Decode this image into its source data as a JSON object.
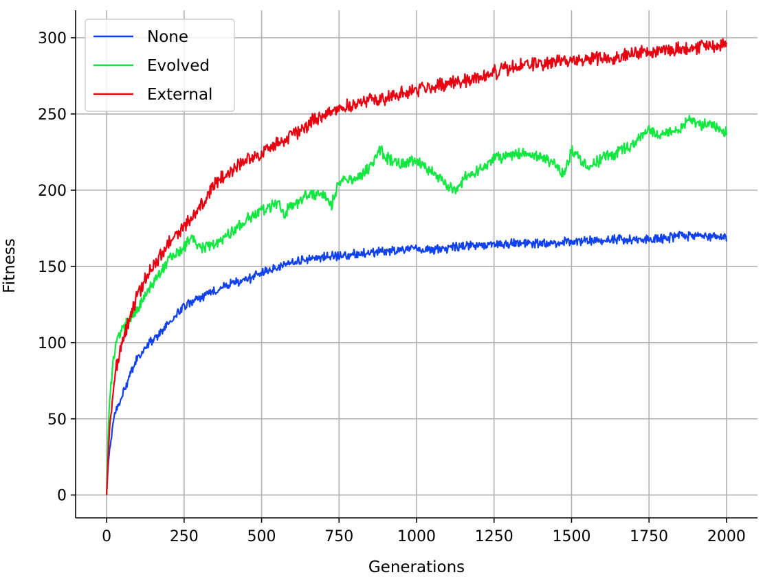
{
  "chart_data": {
    "type": "line",
    "xlabel": "Generations",
    "ylabel": "Fitness",
    "xlim": [
      -100,
      2100
    ],
    "ylim": [
      -15,
      318
    ],
    "xticks": [
      0,
      250,
      500,
      750,
      1000,
      1250,
      1500,
      1750,
      2000
    ],
    "yticks": [
      0,
      50,
      100,
      150,
      200,
      250,
      300
    ],
    "grid": true,
    "legend_position": "top-left",
    "series": [
      {
        "name": "None",
        "color": "#1041f0",
        "x": [
          0,
          5,
          10,
          20,
          30,
          50,
          75,
          100,
          150,
          200,
          250,
          300,
          350,
          400,
          450,
          500,
          550,
          600,
          650,
          700,
          750,
          800,
          850,
          900,
          950,
          1000,
          1050,
          1100,
          1150,
          1200,
          1250,
          1300,
          1350,
          1400,
          1450,
          1500,
          1550,
          1600,
          1650,
          1700,
          1750,
          1800,
          1850,
          1900,
          1950,
          2000
        ],
        "y": [
          0,
          20,
          30,
          45,
          55,
          65,
          78,
          90,
          102,
          112,
          124,
          129,
          134,
          139,
          141,
          146,
          149,
          153,
          155,
          156,
          157,
          158,
          159,
          160,
          161,
          161,
          161,
          162,
          163,
          164,
          164,
          165,
          165,
          165,
          166,
          166,
          167,
          167,
          168,
          168,
          168,
          168,
          170,
          170,
          170,
          169
        ]
      },
      {
        "name": "Evolved",
        "color": "#10e840",
        "x": [
          0,
          5,
          10,
          20,
          30,
          50,
          75,
          100,
          150,
          200,
          250,
          275,
          300,
          350,
          400,
          450,
          500,
          550,
          575,
          600,
          650,
          700,
          725,
          750,
          800,
          850,
          880,
          900,
          950,
          1000,
          1050,
          1100,
          1125,
          1150,
          1200,
          1250,
          1300,
          1350,
          1400,
          1450,
          1475,
          1500,
          1550,
          1600,
          1650,
          1700,
          1750,
          1775,
          1800,
          1850,
          1880,
          1900,
          1950,
          2000
        ],
        "y": [
          0,
          40,
          65,
          85,
          100,
          108,
          115,
          122,
          140,
          155,
          163,
          170,
          162,
          165,
          172,
          180,
          187,
          192,
          185,
          190,
          197,
          197,
          190,
          205,
          207,
          215,
          227,
          221,
          218,
          219,
          212,
          203,
          200,
          207,
          213,
          220,
          223,
          224,
          222,
          217,
          210,
          226,
          215,
          221,
          225,
          230,
          240,
          235,
          237,
          240,
          248,
          243,
          243,
          239
        ]
      },
      {
        "name": "External",
        "color": "#e80010",
        "x": [
          0,
          5,
          10,
          20,
          30,
          50,
          75,
          100,
          150,
          200,
          250,
          300,
          350,
          400,
          450,
          500,
          550,
          600,
          650,
          700,
          750,
          800,
          850,
          900,
          950,
          1000,
          1050,
          1100,
          1150,
          1200,
          1250,
          1300,
          1350,
          1400,
          1450,
          1500,
          1550,
          1600,
          1650,
          1700,
          1750,
          1800,
          1850,
          1900,
          1950,
          2000
        ],
        "y": [
          0,
          25,
          45,
          65,
          82,
          100,
          117,
          132,
          150,
          165,
          176,
          188,
          205,
          212,
          220,
          224,
          231,
          236,
          243,
          250,
          254,
          256,
          259,
          261,
          263,
          266,
          268,
          270,
          272,
          274,
          277,
          280,
          282,
          283,
          284,
          285,
          286,
          287,
          288,
          290,
          291,
          292,
          293,
          294,
          295,
          296
        ]
      }
    ]
  }
}
